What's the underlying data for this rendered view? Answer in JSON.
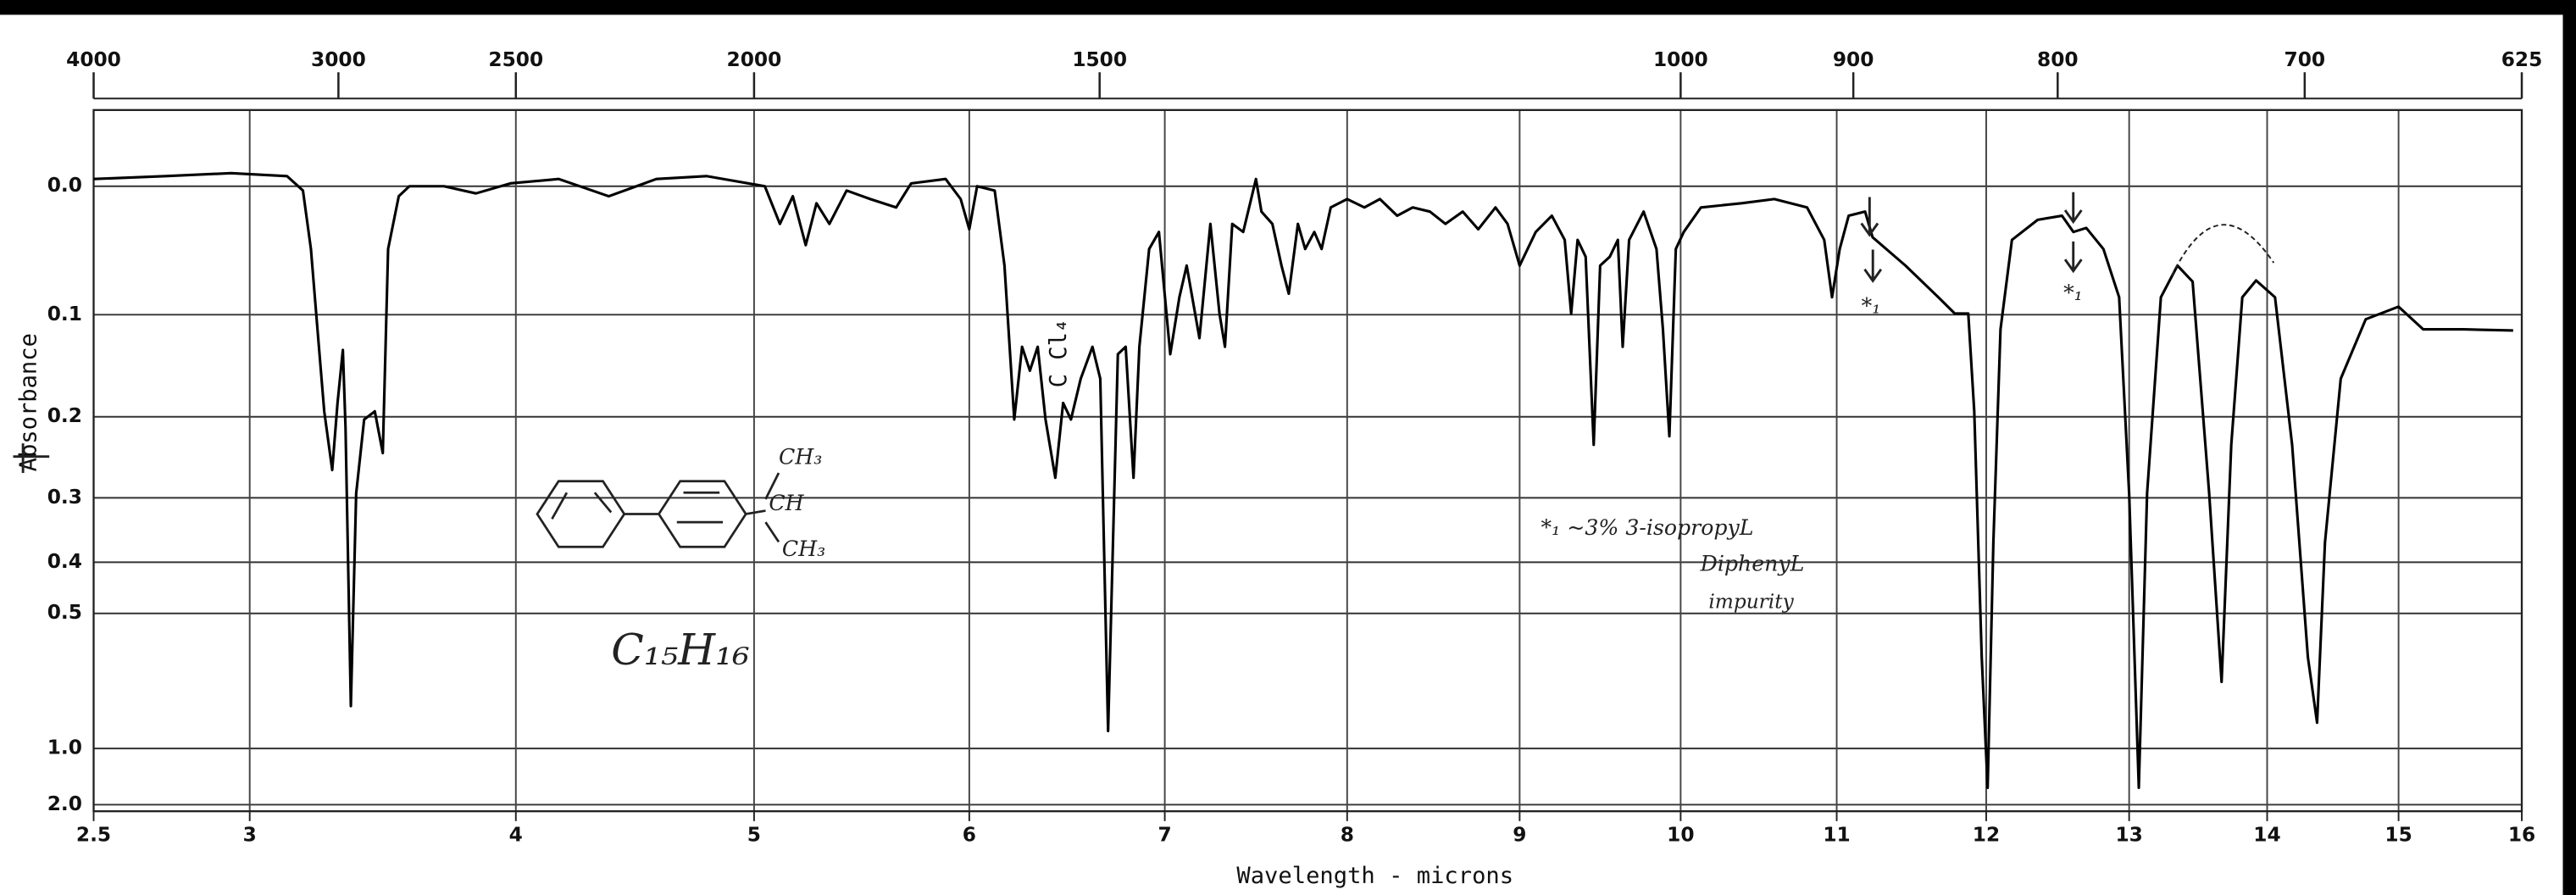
{
  "chart_data": {
    "type": "line",
    "x_label": "Wavelength - microns",
    "y_label": "Absorbance",
    "xlim": [
      2.5,
      16
    ],
    "xticks": [
      2.5,
      3,
      4,
      5,
      6,
      7,
      8,
      9,
      10,
      11,
      12,
      13,
      14,
      15,
      16
    ],
    "x2lim": [
      4000,
      625
    ],
    "x2ticks": [
      4000,
      3000,
      2500,
      2000,
      1500,
      1000,
      900,
      800,
      700,
      625
    ],
    "ylim": [
      -0.05,
      2
    ],
    "yticks": [
      {
        "value": 0,
        "label": "0.0"
      },
      0.1,
      0.2,
      0.3,
      0.4,
      0.5,
      {
        "value": 1,
        "label": "1.0"
      },
      {
        "value": 2,
        "label": "2.0"
      }
    ],
    "grid": true,
    "color": "#000000",
    "x": [
      2.5,
      2.73,
      2.94,
      3.14,
      3.2,
      3.23,
      3.26,
      3.28,
      3.31,
      3.33,
      3.35,
      3.36,
      3.38,
      3.4,
      3.43,
      3.47,
      3.5,
      3.52,
      3.56,
      3.6,
      3.73,
      3.85,
      3.98,
      4.18,
      4.39,
      4.59,
      4.8,
      5.05,
      5.12,
      5.18,
      5.24,
      5.29,
      5.35,
      5.43,
      5.54,
      5.66,
      5.73,
      5.89,
      5.96,
      6.0,
      6.04,
      6.13,
      6.18,
      6.23,
      6.27,
      6.31,
      6.35,
      6.39,
      6.44,
      6.48,
      6.52,
      6.57,
      6.63,
      6.67,
      6.71,
      6.76,
      6.8,
      6.84,
      6.87,
      6.92,
      6.97,
      7.03,
      7.08,
      7.12,
      7.19,
      7.25,
      7.3,
      7.33,
      7.37,
      7.43,
      7.5,
      7.53,
      7.59,
      7.64,
      7.68,
      7.73,
      7.77,
      7.82,
      7.86,
      7.91,
      8.0,
      8.1,
      8.19,
      8.29,
      8.38,
      8.48,
      8.57,
      8.67,
      8.76,
      8.86,
      8.93,
      9.0,
      9.1,
      9.2,
      9.28,
      9.32,
      9.36,
      9.41,
      9.46,
      9.5,
      9.56,
      9.61,
      9.64,
      9.68,
      9.77,
      9.85,
      9.89,
      9.93,
      9.97,
      10.02,
      10.13,
      10.39,
      10.6,
      10.81,
      10.92,
      10.97,
      11.02,
      11.08,
      11.19,
      11.24,
      11.46,
      11.68,
      11.79,
      11.88,
      11.92,
      11.97,
      12.01,
      12.05,
      12.1,
      12.18,
      12.36,
      12.53,
      12.61,
      12.7,
      12.82,
      12.93,
      13.0,
      13.07,
      13.13,
      13.23,
      13.35,
      13.46,
      13.58,
      13.67,
      13.74,
      13.82,
      13.92,
      14.06,
      14.19,
      14.31,
      14.38,
      14.44,
      14.56,
      14.75,
      15.0,
      15.2,
      15.53,
      15.93
    ],
    "values": [
      -0.005,
      -0.007,
      -0.009,
      -0.007,
      0.003,
      0.046,
      0.129,
      0.194,
      0.263,
      0.185,
      0.132,
      0.212,
      0.775,
      0.294,
      0.203,
      0.194,
      0.242,
      0.046,
      0.007,
      0,
      0,
      0.005,
      -0.002,
      -0.005,
      0.007,
      -0.005,
      -0.007,
      0,
      0.027,
      0.007,
      0.043,
      0.012,
      0.027,
      0.003,
      0.009,
      0.015,
      -0.002,
      -0.005,
      0.009,
      0.031,
      0,
      0.003,
      0.059,
      0.203,
      0.129,
      0.152,
      0.129,
      0.203,
      0.273,
      0.185,
      0.203,
      0.16,
      0.129,
      0.16,
      0.893,
      0.136,
      0.129,
      0.273,
      0.129,
      0.046,
      0.033,
      0.136,
      0.085,
      0.059,
      0.121,
      0.027,
      0.099,
      0.129,
      0.027,
      0.033,
      -0.005,
      0.018,
      0.027,
      0.059,
      0.082,
      0.027,
      0.046,
      0.033,
      0.046,
      0.015,
      0.009,
      0.015,
      0.009,
      0.021,
      0.015,
      0.018,
      0.027,
      0.018,
      0.031,
      0.015,
      0.027,
      0.059,
      0.033,
      0.021,
      0.039,
      0.099,
      0.039,
      0.052,
      0.232,
      0.059,
      0.052,
      0.039,
      0.129,
      0.039,
      0.018,
      0.046,
      0.113,
      0.222,
      0.046,
      0.033,
      0.015,
      0.012,
      0.009,
      0.015,
      0.039,
      0.085,
      0.046,
      0.021,
      0.018,
      0.037,
      0.059,
      0.085,
      0.099,
      0.099,
      0.194,
      0.609,
      1.43,
      0.367,
      0.113,
      0.039,
      0.024,
      0.021,
      0.033,
      0.03,
      0.046,
      0.085,
      0.294,
      1.43,
      0.294,
      0.085,
      0.059,
      0.072,
      0.294,
      0.685,
      0.232,
      0.085,
      0.071,
      0.085,
      0.232,
      0.609,
      0.85,
      0.367,
      0.16,
      0.104,
      0.093,
      0.113,
      0.113,
      0.114
    ],
    "annotations": [
      "C Cl₄",
      "CH₃",
      "CH",
      "CH₃",
      "C₁₅H₁₆",
      "*₁",
      "*₁",
      "*₁  ~3%  3-isopropyL",
      "DiphenyL",
      "impurity"
    ]
  }
}
